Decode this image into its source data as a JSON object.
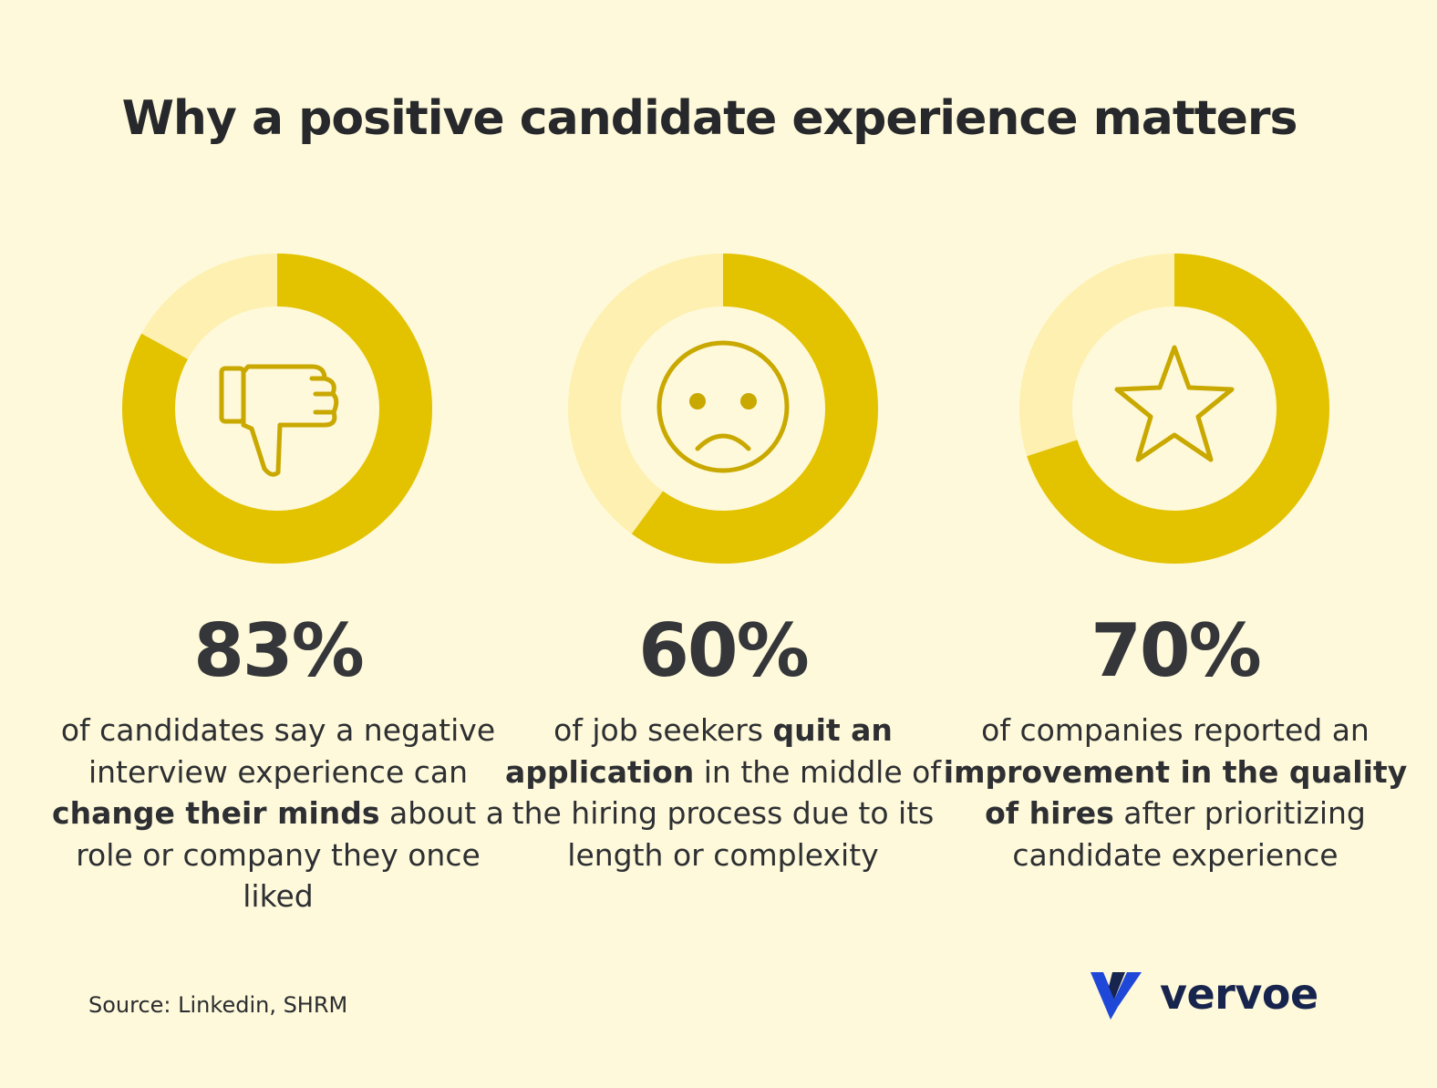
{
  "title": "Why a positive candidate experience matters",
  "colors": {
    "background": "#fef9da",
    "ring_fill": "#e3c200",
    "ring_track": "#fdf0b0",
    "inner": "#fef9da",
    "icon": "#c9a800",
    "logo_blue": "#1f48d8",
    "logo_navy": "#17244d"
  },
  "stats": [
    {
      "value_label": "83%",
      "icon": "thumbs-down-icon",
      "description": [
        {
          "text": "of candidates say a negative interview experience can ",
          "bold": false
        },
        {
          "text": "change their minds",
          "bold": true
        },
        {
          "text": " about a role or company they once liked",
          "bold": false
        }
      ]
    },
    {
      "value_label": "60%",
      "icon": "sad-face-icon",
      "description": [
        {
          "text": "of job seekers ",
          "bold": false
        },
        {
          "text": "quit an application",
          "bold": true
        },
        {
          "text": " in the middle of the hiring process due to its length or complexity",
          "bold": false
        }
      ]
    },
    {
      "value_label": "70%",
      "icon": "star-icon",
      "description": [
        {
          "text": "of companies reported an ",
          "bold": false
        },
        {
          "text": "improvement in the quality of hires",
          "bold": true
        },
        {
          "text": " after prioritizing candidate experience",
          "bold": false
        }
      ]
    }
  ],
  "chart_data": [
    {
      "type": "pie",
      "categories": [
        "83%",
        ""
      ],
      "values": [
        83,
        17
      ]
    },
    {
      "type": "pie",
      "categories": [
        "60%",
        ""
      ],
      "values": [
        60,
        40
      ]
    },
    {
      "type": "pie",
      "categories": [
        "70%",
        ""
      ],
      "values": [
        70,
        30
      ]
    }
  ],
  "source": "Source: Linkedin, SHRM",
  "logo": {
    "text": "vervoe",
    "mark_icon": "vervoe-v-logo-icon"
  }
}
